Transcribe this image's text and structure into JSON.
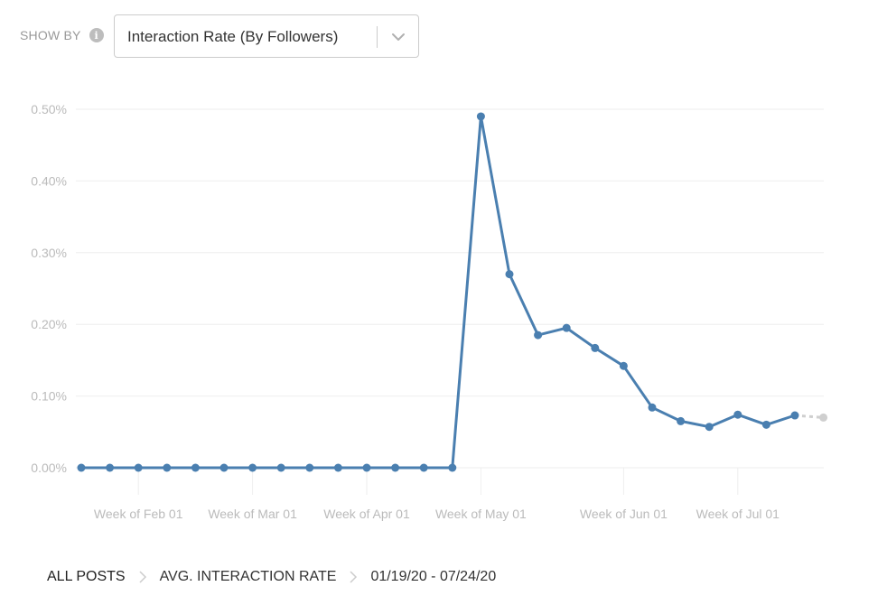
{
  "controls": {
    "show_by_label": "SHOW BY",
    "info_icon": "info-icon",
    "metric_select_value": "Interaction Rate (By Followers)",
    "dropdown_icon": "chevron-down-icon"
  },
  "breadcrumb": {
    "root": "ALL POSTS",
    "metric": "AVG. INTERACTION RATE",
    "date_range": "01/19/20 - 07/24/20",
    "separator_icon": "chevron-right-icon"
  },
  "colors": {
    "series": "#4a7fb0",
    "projected": "#cfcfcf",
    "grid": "#eeeeee",
    "tick_text": "#bbbbbb"
  },
  "chart_data": {
    "type": "line",
    "ylim": [
      0,
      0.5
    ],
    "y_ticks": [
      {
        "value": 0.5,
        "label": "0.50%"
      },
      {
        "value": 0.4,
        "label": "0.40%"
      },
      {
        "value": 0.3,
        "label": "0.30%"
      },
      {
        "value": 0.2,
        "label": "0.20%"
      },
      {
        "value": 0.1,
        "label": "0.10%"
      },
      {
        "value": 0.0,
        "label": "0.00%"
      }
    ],
    "x_tick_labels": [
      {
        "week": 2,
        "label": "Week of Feb 01"
      },
      {
        "week": 6,
        "label": "Week of Mar 01"
      },
      {
        "week": 10,
        "label": "Week of Apr 01"
      },
      {
        "week": 14,
        "label": "Week of May 01"
      },
      {
        "week": 19,
        "label": "Week of Jun 01"
      },
      {
        "week": 23,
        "label": "Week of Jul 01"
      }
    ],
    "weeks": 27,
    "series": [
      {
        "values": [
          0,
          0,
          0,
          0,
          0,
          0,
          0,
          0,
          0,
          0,
          0,
          0,
          0,
          0,
          0.49,
          0.27,
          0.185,
          0.195,
          0.167,
          0.142,
          0.084,
          0.065,
          0.057,
          0.074,
          0.06,
          0.073
        ]
      }
    ],
    "projected": {
      "from_week": 25,
      "to_week": 26,
      "values": [
        0.073,
        0.07
      ]
    },
    "grid": true,
    "legend": "none"
  }
}
